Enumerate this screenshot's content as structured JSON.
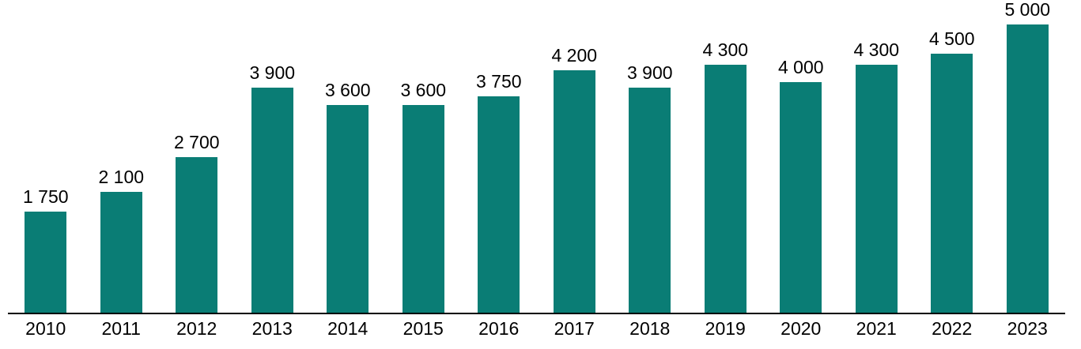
{
  "chart_data": {
    "type": "bar",
    "title": "",
    "xlabel": "",
    "ylabel": "",
    "categories": [
      "2010",
      "2011",
      "2012",
      "2013",
      "2014",
      "2015",
      "2016",
      "2017",
      "2018",
      "2019",
      "2020",
      "2021",
      "2022",
      "2023"
    ],
    "values": [
      1750,
      2100,
      2700,
      3900,
      3600,
      3600,
      3750,
      4200,
      3900,
      4300,
      4000,
      4300,
      4500,
      5000
    ],
    "value_labels": [
      "1 750",
      "2 100",
      "2 700",
      "3 900",
      "3 600",
      "3 600",
      "3 750",
      "4 200",
      "3 900",
      "4 300",
      "4 000",
      "4 300",
      "4 500",
      "5 000"
    ],
    "ylim": [
      0,
      5000
    ],
    "grid": false,
    "legend": "none",
    "data_labels_position": "above-bars",
    "bar_color": "#0A7D75",
    "axis_color": "#000000",
    "label_color": "#000000"
  }
}
